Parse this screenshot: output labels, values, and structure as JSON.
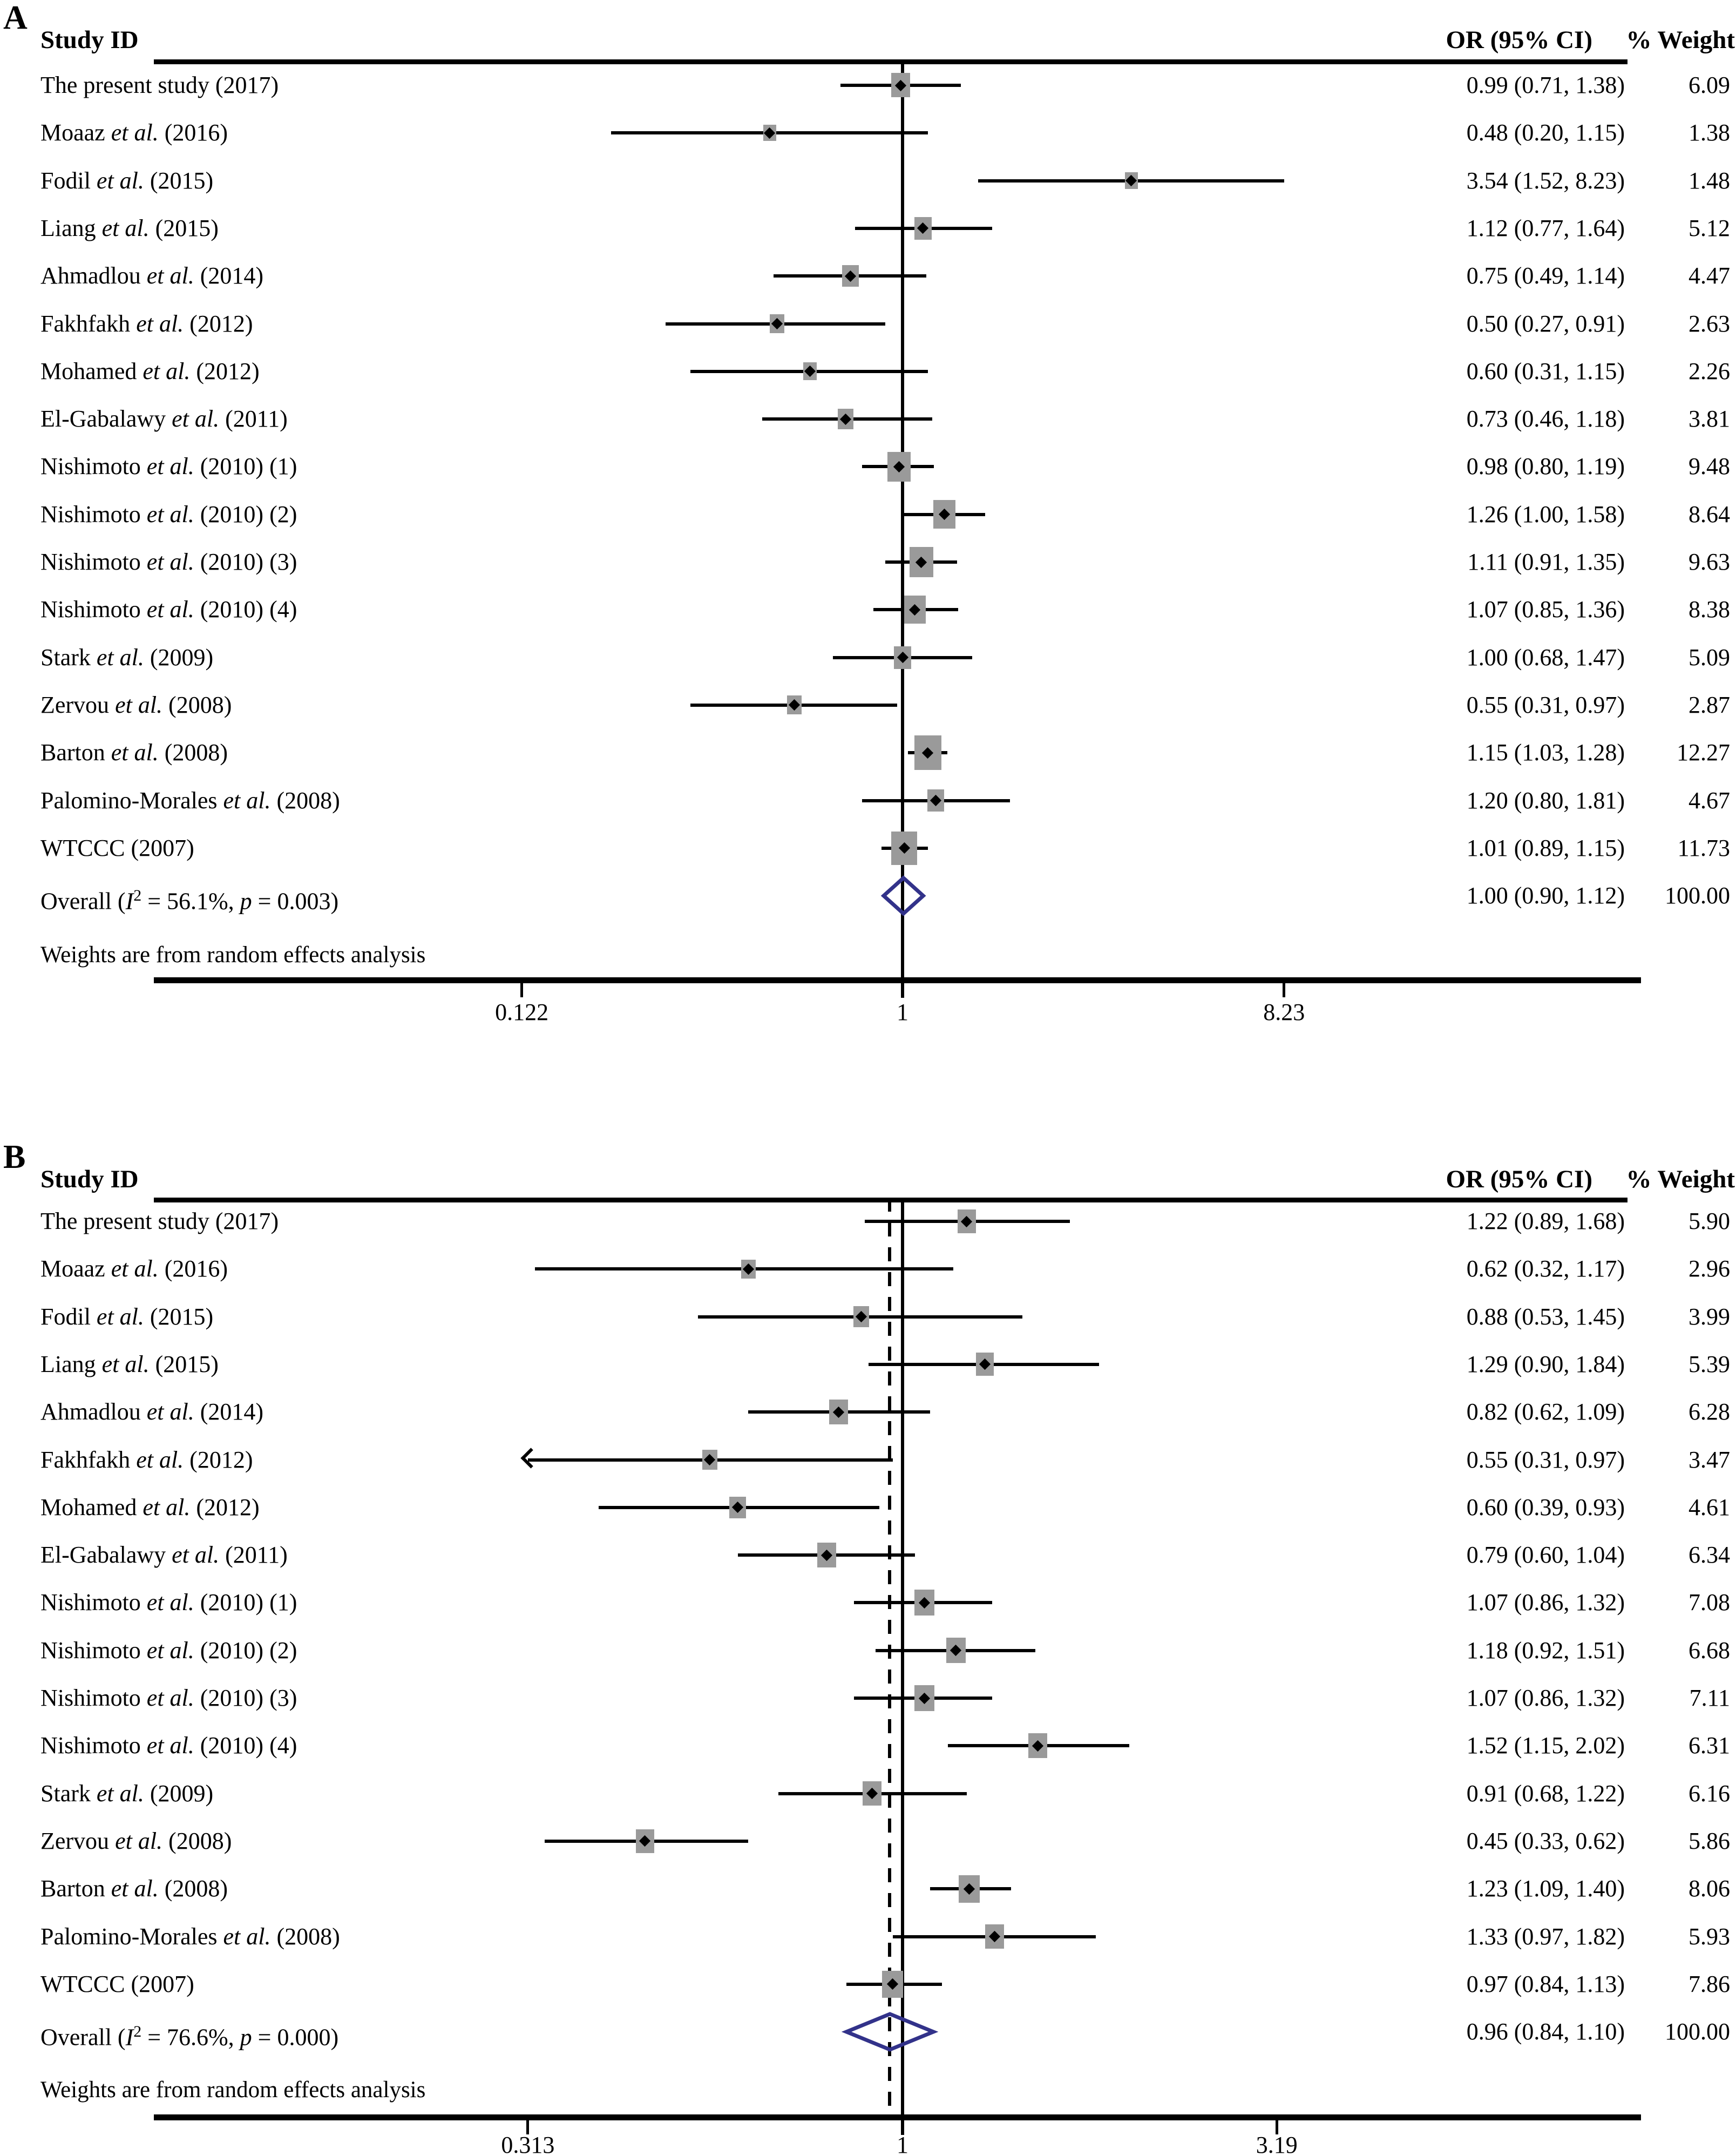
{
  "colors": {
    "background": "#ffffff",
    "text": "#000000",
    "line": "#000000",
    "effect_square": "#9a9a9a",
    "marker_diamond": "#000000",
    "overall_diamond_outline": "#32328a"
  },
  "chart_data": [
    {
      "type": "forest",
      "panel_label": "A",
      "header": {
        "study": "Study ID",
        "or_ci": "OR (95% CI)",
        "weight": "% Weight"
      },
      "axis": {
        "scale": "log",
        "tick_values": [
          0.122,
          1,
          8.23
        ],
        "tick_labels": [
          "0.122",
          "1",
          "8.23"
        ]
      },
      "ref_value": 1,
      "dashed_value": null,
      "note": "Weights are from random effects analysis",
      "studies": [
        {
          "label": "The present study (2017)",
          "or": 0.99,
          "lo": 0.71,
          "hi": 1.38,
          "or_text": "0.99 (0.71, 1.38)",
          "weight": "6.09"
        },
        {
          "label": "Moaaz et al. (2016)",
          "or": 0.48,
          "lo": 0.2,
          "hi": 1.15,
          "or_text": "0.48 (0.20, 1.15)",
          "weight": "1.38"
        },
        {
          "label": "Fodil et al. (2015)",
          "or": 3.54,
          "lo": 1.52,
          "hi": 8.23,
          "or_text": "3.54 (1.52, 8.23)",
          "weight": "1.48"
        },
        {
          "label": "Liang et al. (2015)",
          "or": 1.12,
          "lo": 0.77,
          "hi": 1.64,
          "or_text": "1.12 (0.77, 1.64)",
          "weight": "5.12"
        },
        {
          "label": "Ahmadlou et al. (2014)",
          "or": 0.75,
          "lo": 0.49,
          "hi": 1.14,
          "or_text": "0.75 (0.49, 1.14)",
          "weight": "4.47"
        },
        {
          "label": "Fakhfakh et al. (2012)",
          "or": 0.5,
          "lo": 0.27,
          "hi": 0.91,
          "or_text": "0.50 (0.27, 0.91)",
          "weight": "2.63"
        },
        {
          "label": "Mohamed et al. (2012)",
          "or": 0.6,
          "lo": 0.31,
          "hi": 1.15,
          "or_text": "0.60 (0.31, 1.15)",
          "weight": "2.26"
        },
        {
          "label": "El-Gabalawy et al. (2011)",
          "or": 0.73,
          "lo": 0.46,
          "hi": 1.18,
          "or_text": "0.73 (0.46, 1.18)",
          "weight": "3.81"
        },
        {
          "label": "Nishimoto et al. (2010) (1)",
          "or": 0.98,
          "lo": 0.8,
          "hi": 1.19,
          "or_text": "0.98 (0.80, 1.19)",
          "weight": "9.48"
        },
        {
          "label": "Nishimoto et al. (2010) (2)",
          "or": 1.26,
          "lo": 1.0,
          "hi": 1.58,
          "or_text": "1.26 (1.00, 1.58)",
          "weight": "8.64"
        },
        {
          "label": "Nishimoto et al. (2010) (3)",
          "or": 1.11,
          "lo": 0.91,
          "hi": 1.35,
          "or_text": "1.11 (0.91, 1.35)",
          "weight": "9.63"
        },
        {
          "label": "Nishimoto et al. (2010) (4)",
          "or": 1.07,
          "lo": 0.85,
          "hi": 1.36,
          "or_text": "1.07 (0.85, 1.36)",
          "weight": "8.38"
        },
        {
          "label": "Stark et al. (2009)",
          "or": 1.0,
          "lo": 0.68,
          "hi": 1.47,
          "or_text": "1.00 (0.68, 1.47)",
          "weight": "5.09"
        },
        {
          "label": "Zervou et al. (2008)",
          "or": 0.55,
          "lo": 0.31,
          "hi": 0.97,
          "or_text": "0.55 (0.31, 0.97)",
          "weight": "2.87"
        },
        {
          "label": "Barton et al. (2008)",
          "or": 1.15,
          "lo": 1.03,
          "hi": 1.28,
          "or_text": "1.15 (1.03, 1.28)",
          "weight": "12.27"
        },
        {
          "label": "Palomino-Morales et al. (2008)",
          "or": 1.2,
          "lo": 0.8,
          "hi": 1.81,
          "or_text": "1.20 (0.80, 1.81)",
          "weight": "4.67"
        },
        {
          "label": "WTCCC (2007)",
          "or": 1.01,
          "lo": 0.89,
          "hi": 1.15,
          "or_text": "1.01 (0.89, 1.15)",
          "weight": "11.73"
        }
      ],
      "overall": {
        "label": "Overall (I² = 56.1%, p = 0.003)",
        "or": 1.0,
        "lo": 0.9,
        "hi": 1.12,
        "or_text": "1.00 (0.90, 1.12)",
        "weight": "100.00"
      }
    },
    {
      "type": "forest",
      "panel_label": "B",
      "header": {
        "study": "Study ID",
        "or_ci": "OR (95% CI)",
        "weight": "% Weight"
      },
      "axis": {
        "scale": "log",
        "tick_values": [
          0.313,
          1,
          3.19
        ],
        "tick_labels": [
          "0.313",
          "1",
          "3.19"
        ]
      },
      "ref_value": 1,
      "dashed_value": 0.96,
      "note": "Weights are from random effects analysis",
      "studies": [
        {
          "label": "The present study (2017)",
          "or": 1.22,
          "lo": 0.89,
          "hi": 1.68,
          "or_text": "1.22 (0.89, 1.68)",
          "weight": "5.90"
        },
        {
          "label": "Moaaz et al. (2016)",
          "or": 0.62,
          "lo": 0.32,
          "hi": 1.17,
          "or_text": "0.62 (0.32, 1.17)",
          "weight": "2.96"
        },
        {
          "label": "Fodil et al. (2015)",
          "or": 0.88,
          "lo": 0.53,
          "hi": 1.45,
          "or_text": "0.88 (0.53, 1.45)",
          "weight": "3.99"
        },
        {
          "label": "Liang et al. (2015)",
          "or": 1.29,
          "lo": 0.9,
          "hi": 1.84,
          "or_text": "1.29 (0.90, 1.84)",
          "weight": "5.39"
        },
        {
          "label": "Ahmadlou et al. (2014)",
          "or": 0.82,
          "lo": 0.62,
          "hi": 1.09,
          "or_text": "0.82 (0.62, 1.09)",
          "weight": "6.28"
        },
        {
          "label": "Fakhfakh et al. (2012)",
          "or": 0.55,
          "lo": 0.31,
          "hi": 0.97,
          "or_text": "0.55 (0.31, 0.97)",
          "weight": "3.47",
          "clip_low": true
        },
        {
          "label": "Mohamed et al. (2012)",
          "or": 0.6,
          "lo": 0.39,
          "hi": 0.93,
          "or_text": "0.60 (0.39, 0.93)",
          "weight": "4.61"
        },
        {
          "label": "El-Gabalawy et al. (2011)",
          "or": 0.79,
          "lo": 0.6,
          "hi": 1.04,
          "or_text": "0.79 (0.60, 1.04)",
          "weight": "6.34"
        },
        {
          "label": "Nishimoto et al. (2010) (1)",
          "or": 1.07,
          "lo": 0.86,
          "hi": 1.32,
          "or_text": "1.07 (0.86, 1.32)",
          "weight": "7.08"
        },
        {
          "label": "Nishimoto et al. (2010) (2)",
          "or": 1.18,
          "lo": 0.92,
          "hi": 1.51,
          "or_text": "1.18 (0.92, 1.51)",
          "weight": "6.68"
        },
        {
          "label": "Nishimoto et al. (2010) (3)",
          "or": 1.07,
          "lo": 0.86,
          "hi": 1.32,
          "or_text": "1.07 (0.86, 1.32)",
          "weight": "7.11"
        },
        {
          "label": "Nishimoto et al. (2010) (4)",
          "or": 1.52,
          "lo": 1.15,
          "hi": 2.02,
          "or_text": "1.52 (1.15, 2.02)",
          "weight": "6.31"
        },
        {
          "label": "Stark et al. (2009)",
          "or": 0.91,
          "lo": 0.68,
          "hi": 1.22,
          "or_text": "0.91 (0.68, 1.22)",
          "weight": "6.16"
        },
        {
          "label": "Zervou et al. (2008)",
          "or": 0.45,
          "lo": 0.33,
          "hi": 0.62,
          "or_text": "0.45 (0.33, 0.62)",
          "weight": "5.86"
        },
        {
          "label": "Barton et al. (2008)",
          "or": 1.23,
          "lo": 1.09,
          "hi": 1.4,
          "or_text": "1.23 (1.09, 1.40)",
          "weight": "8.06"
        },
        {
          "label": "Palomino-Morales et al. (2008)",
          "or": 1.33,
          "lo": 0.97,
          "hi": 1.82,
          "or_text": "1.33 (0.97, 1.82)",
          "weight": "5.93"
        },
        {
          "label": "WTCCC (2007)",
          "or": 0.97,
          "lo": 0.84,
          "hi": 1.13,
          "or_text": "0.97 (0.84, 1.13)",
          "weight": "7.86"
        }
      ],
      "overall": {
        "label": "Overall (I² = 76.6%, p = 0.000)",
        "or": 0.96,
        "lo": 0.84,
        "hi": 1.1,
        "or_text": "0.96 (0.84, 1.10)",
        "weight": "100.00"
      }
    }
  ]
}
